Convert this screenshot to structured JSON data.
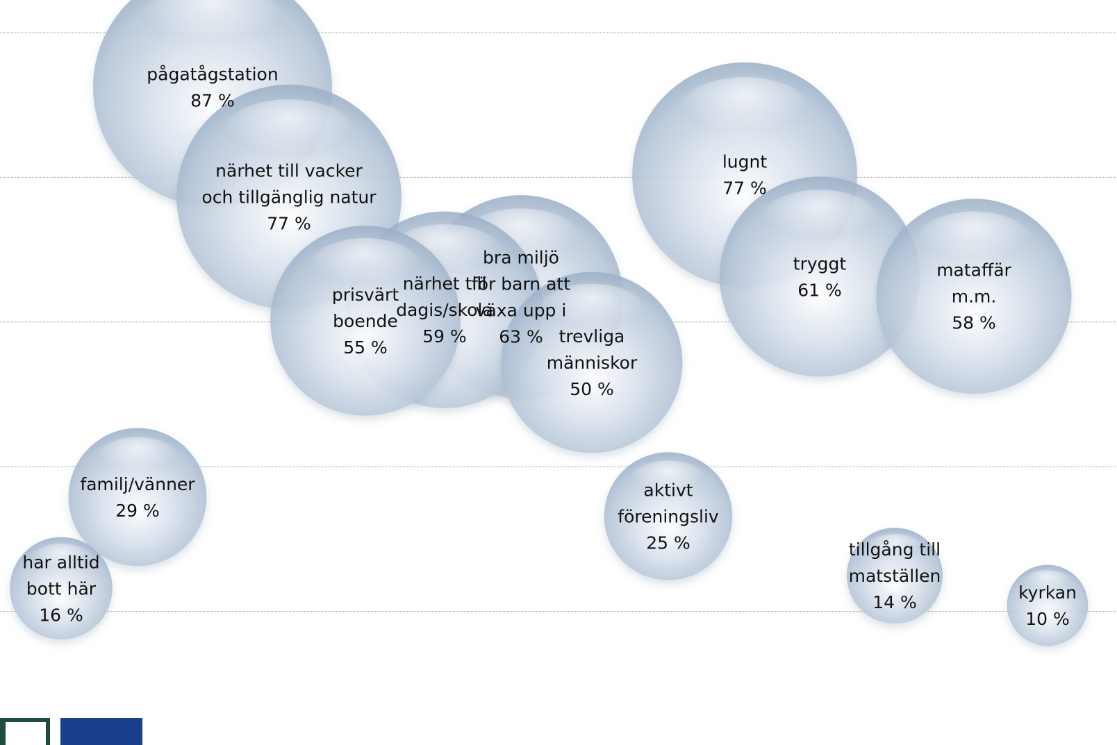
{
  "chart_data": {
    "type": "scatter",
    "title": "",
    "xlabel": "",
    "ylabel": "",
    "ylim": [
      0,
      100
    ],
    "grid": true,
    "gridlines_y": [
      20,
      40,
      60,
      80,
      100
    ],
    "series": [
      {
        "points": [
          {
            "label": [
              "pågatågstation",
              "87 %"
            ],
            "value": 87
          },
          {
            "label": [
              "närhet till vacker",
              "och  tillgänglig natur",
              "77 %"
            ],
            "value": 77
          },
          {
            "label": [
              "lugnt",
              "77 %"
            ],
            "value": 77
          },
          {
            "label": [
              "bra miljö",
              "för barn att",
              "växa upp i",
              "63 %"
            ],
            "value": 63
          },
          {
            "label": [
              "tryggt",
              "61 %"
            ],
            "value": 61
          },
          {
            "label": [
              "närhet  till",
              "dagis/skola",
              "59 %"
            ],
            "value": 59
          },
          {
            "label": [
              "mataffär",
              "m.m.",
              "58 %"
            ],
            "value": 58
          },
          {
            "label": [
              "prisvärt",
              "boende",
              "55 %"
            ],
            "value": 55
          },
          {
            "label": [
              "trevliga",
              "människor",
              "50 %"
            ],
            "value": 50
          },
          {
            "label": [
              "familj/vänner",
              "29 %"
            ],
            "value": 29
          },
          {
            "label": [
              "aktivt",
              "föreningsliv",
              "25 %"
            ],
            "value": 25
          },
          {
            "label": [
              "har alltid",
              "bott här",
              "16 %"
            ],
            "value": 16
          },
          {
            "label": [
              "tillgång till",
              "matställen",
              "14 %"
            ],
            "value": 14
          },
          {
            "label": [
              "kyrkan",
              "10 %"
            ],
            "value": 10
          }
        ]
      }
    ],
    "bubble_color": "#b4c4d8"
  }
}
